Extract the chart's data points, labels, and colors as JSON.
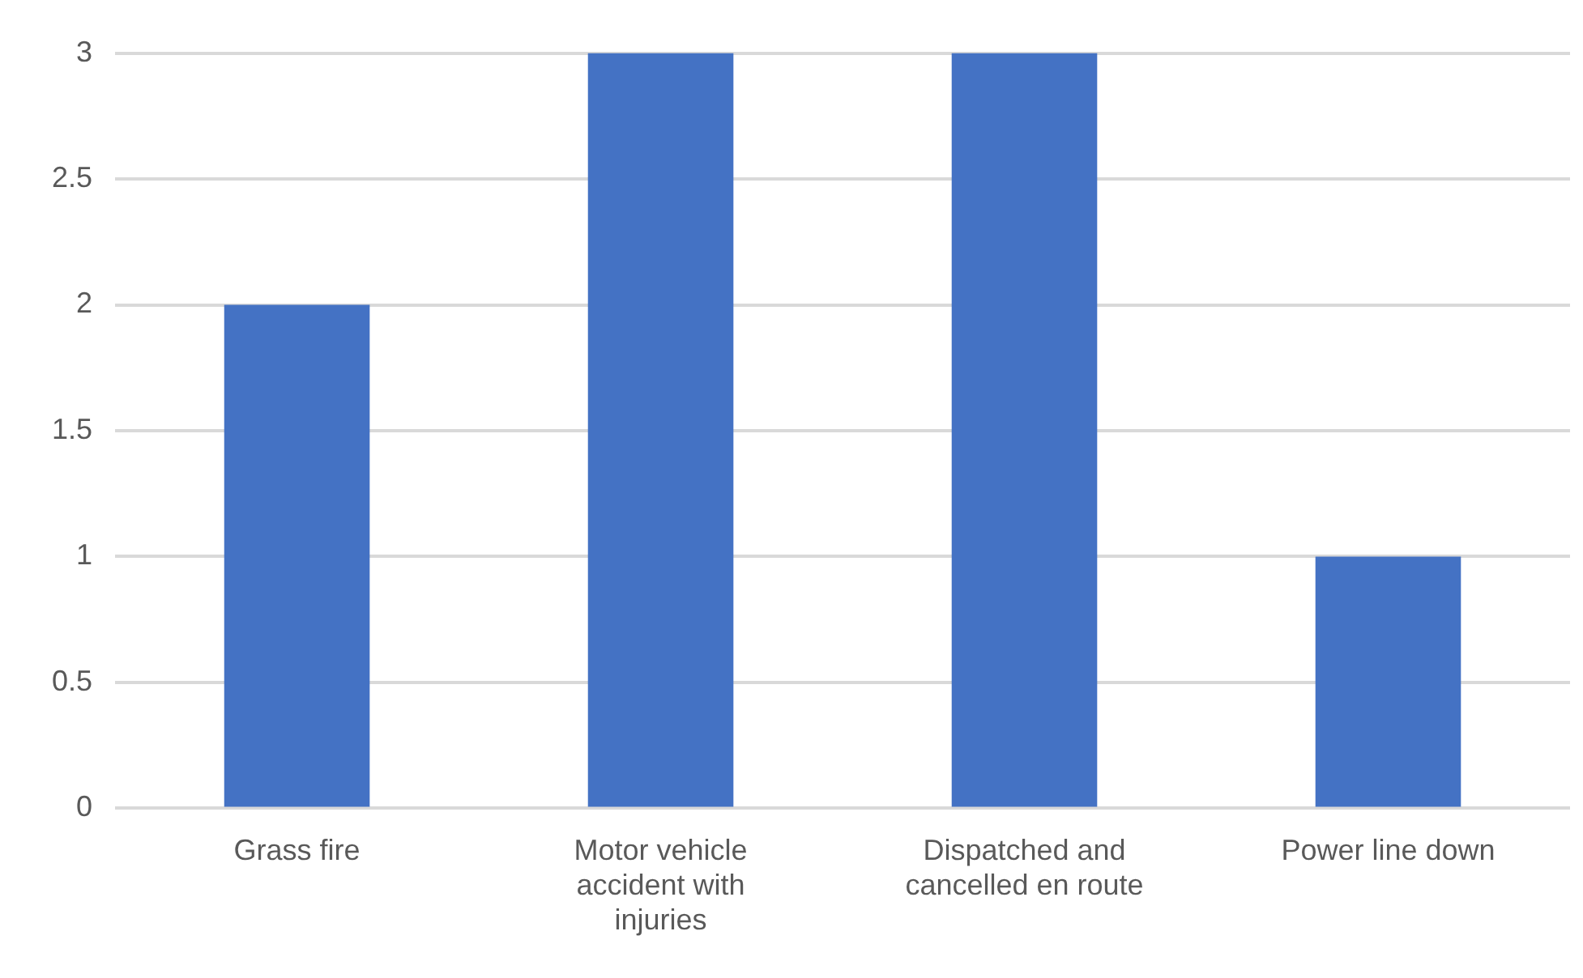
{
  "chart_data": {
    "type": "bar",
    "categories": [
      "Grass fire",
      "Motor vehicle accident with injuries",
      "Dispatched and cancelled en route",
      "Power line down"
    ],
    "values": [
      2,
      3,
      3,
      1
    ],
    "color": "#4472c4",
    "ylim": [
      0,
      3
    ],
    "yticks": [
      0,
      0.5,
      1,
      1.5,
      2,
      2.5,
      3
    ],
    "grid": "y",
    "legend": false
  }
}
